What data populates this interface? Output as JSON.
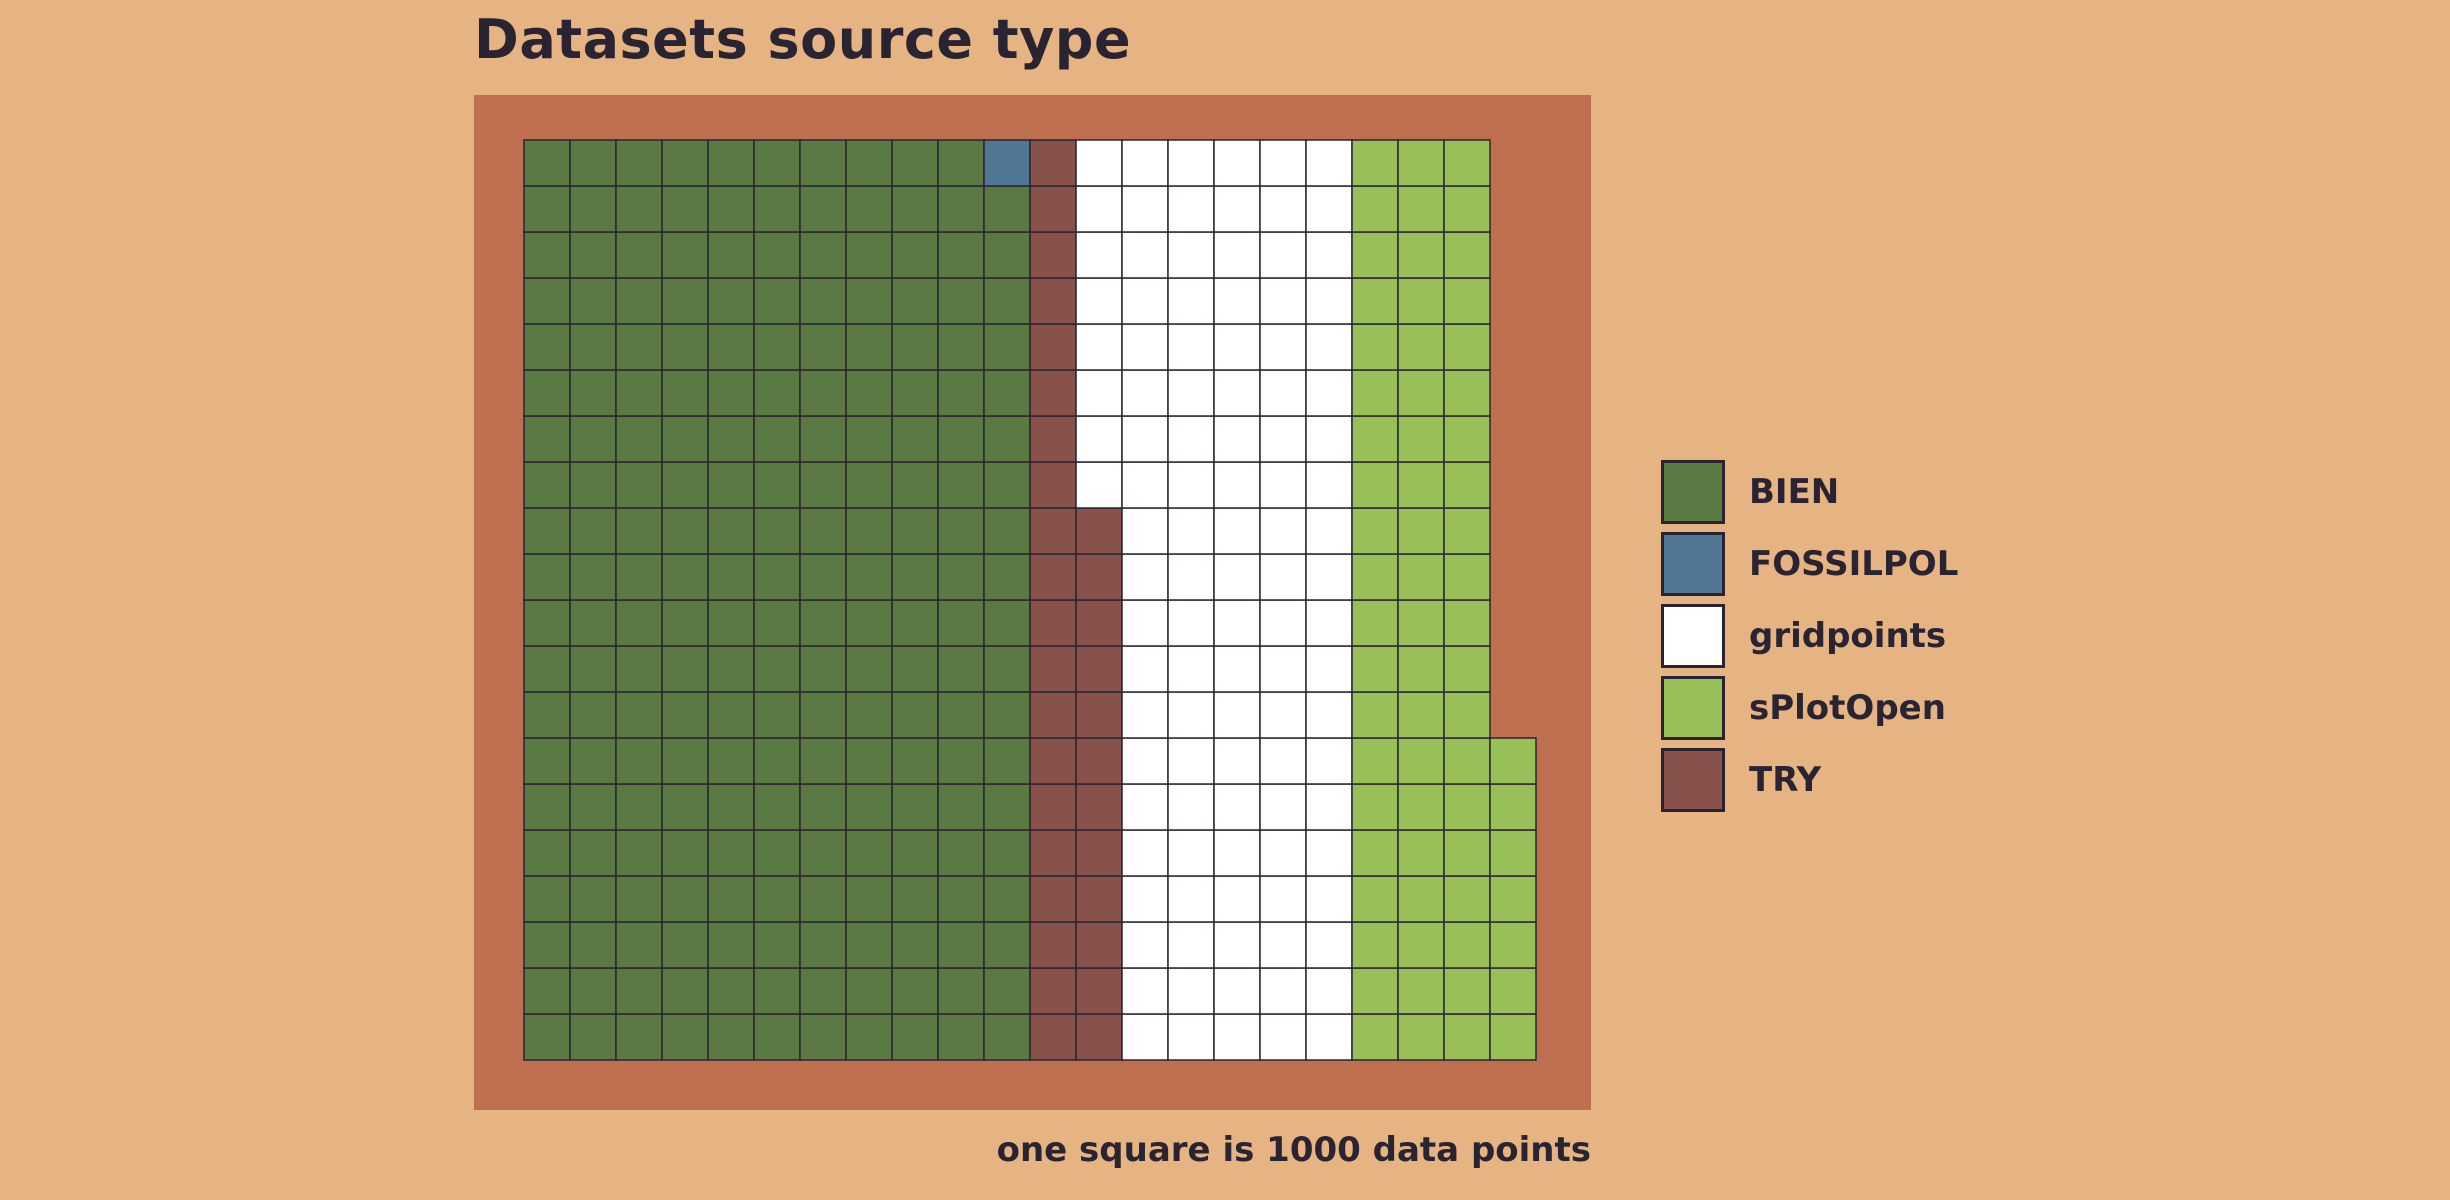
{
  "chart_data": {
    "type": "waffle",
    "title": "Datasets source type",
    "caption": "one square is 1000 data points",
    "unit_per_square": 1000,
    "legend_position": "right",
    "series": [
      {
        "name": "BIEN",
        "squares": 219,
        "color": "#5B7942"
      },
      {
        "name": "FOSSILPOL",
        "squares": 1,
        "color": "#507793"
      },
      {
        "name": "gridpoints",
        "squares": 108,
        "color": "#FFFFFF"
      },
      {
        "name": "sPlotOpen",
        "squares": 67,
        "color": "#98BF58"
      },
      {
        "name": "TRY",
        "squares": 32,
        "color": "#87514C"
      }
    ],
    "fill_order": [
      "BIEN",
      "FOSSILPOL",
      "TRY",
      "gridpoints",
      "sPlotOpen"
    ],
    "rows": 20
  },
  "colors": {
    "background": "#E6B383",
    "panel": "#BD6F50",
    "grid_line": "#2A2432"
  }
}
